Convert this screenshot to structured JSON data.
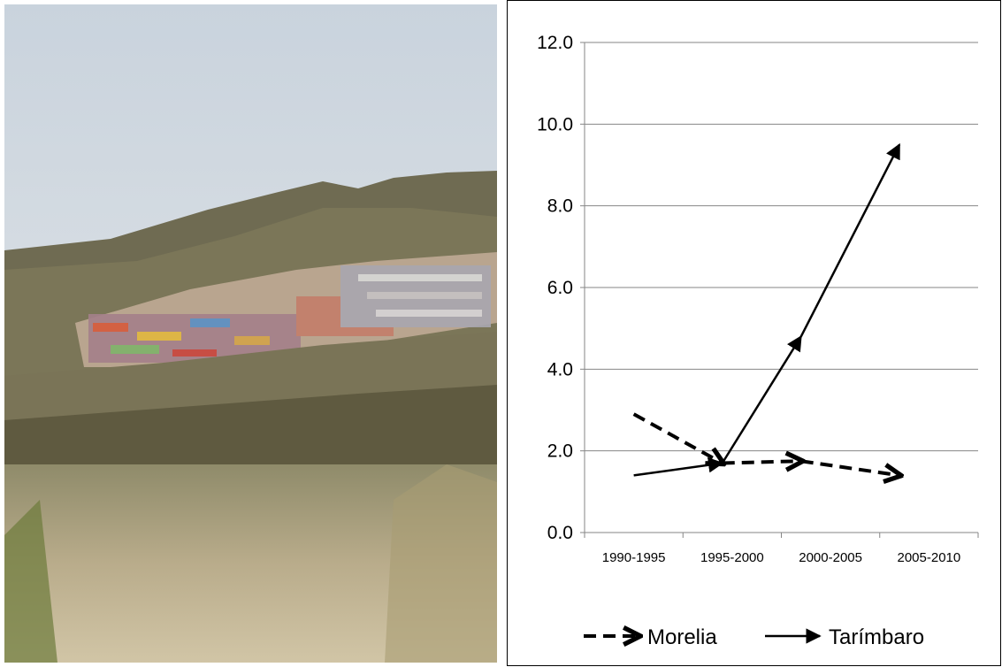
{
  "photo": {
    "description_icon": "hillside-housing-photo"
  },
  "chart_data": {
    "type": "line",
    "categories": [
      "1990-1995",
      "1995-2000",
      "2000-2005",
      "2005-2010"
    ],
    "series": [
      {
        "name": "Morelia",
        "style": "dashed-arrow",
        "points": [
          [
            0.5,
            2.9
          ],
          [
            1.4,
            1.7
          ],
          [
            2.2,
            1.75
          ],
          [
            3.2,
            1.4
          ]
        ]
      },
      {
        "name": "Tarímbaro",
        "style": "solid-arrow",
        "points": [
          [
            0.5,
            1.4
          ],
          [
            1.4,
            1.7
          ],
          [
            2.2,
            4.8
          ],
          [
            3.2,
            9.5
          ]
        ]
      }
    ],
    "ylim": [
      0,
      12
    ],
    "yticks": [
      "0.0",
      "2.0",
      "4.0",
      "6.0",
      "8.0",
      "10.0",
      "12.0"
    ],
    "grid": true,
    "legend_position": "bottom",
    "colors": {
      "line": "#000000",
      "grid": "#868686"
    }
  }
}
